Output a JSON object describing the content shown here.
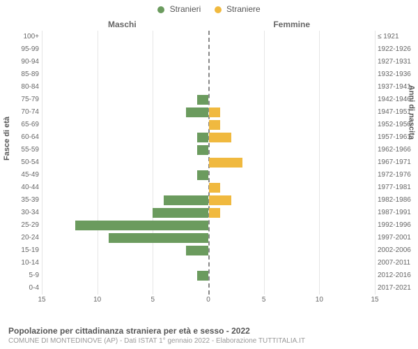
{
  "legend": {
    "male": "Stranieri",
    "female": "Straniere",
    "male_color": "#6b9b5e",
    "female_color": "#f0b93f"
  },
  "headers": {
    "male": "Maschi",
    "female": "Femmine"
  },
  "axis_titles": {
    "left": "Fasce di età",
    "right": "Anni di nascita"
  },
  "chart": {
    "type": "population-pyramid",
    "xmax": 15,
    "xticks": [
      15,
      10,
      5,
      0,
      5,
      10,
      15
    ],
    "background_color": "#ffffff",
    "grid_color": "#e5e5e5",
    "center_line_color": "#888888",
    "bar_male_color": "#6b9b5e",
    "bar_female_color": "#f0b93f",
    "rows": [
      {
        "age": "100+",
        "birth": "≤ 1921",
        "m": 0,
        "f": 0
      },
      {
        "age": "95-99",
        "birth": "1922-1926",
        "m": 0,
        "f": 0
      },
      {
        "age": "90-94",
        "birth": "1927-1931",
        "m": 0,
        "f": 0
      },
      {
        "age": "85-89",
        "birth": "1932-1936",
        "m": 0,
        "f": 0
      },
      {
        "age": "80-84",
        "birth": "1937-1941",
        "m": 0,
        "f": 0
      },
      {
        "age": "75-79",
        "birth": "1942-1946",
        "m": 1,
        "f": 0
      },
      {
        "age": "70-74",
        "birth": "1947-1951",
        "m": 2,
        "f": 1
      },
      {
        "age": "65-69",
        "birth": "1952-1956",
        "m": 0,
        "f": 1
      },
      {
        "age": "60-64",
        "birth": "1957-1961",
        "m": 1,
        "f": 2
      },
      {
        "age": "55-59",
        "birth": "1962-1966",
        "m": 1,
        "f": 0
      },
      {
        "age": "50-54",
        "birth": "1967-1971",
        "m": 0,
        "f": 3
      },
      {
        "age": "45-49",
        "birth": "1972-1976",
        "m": 1,
        "f": 0
      },
      {
        "age": "40-44",
        "birth": "1977-1981",
        "m": 0,
        "f": 1
      },
      {
        "age": "35-39",
        "birth": "1982-1986",
        "m": 4,
        "f": 2
      },
      {
        "age": "30-34",
        "birth": "1987-1991",
        "m": 5,
        "f": 1
      },
      {
        "age": "25-29",
        "birth": "1992-1996",
        "m": 12,
        "f": 0
      },
      {
        "age": "20-24",
        "birth": "1997-2001",
        "m": 9,
        "f": 0
      },
      {
        "age": "15-19",
        "birth": "2002-2006",
        "m": 2,
        "f": 0
      },
      {
        "age": "10-14",
        "birth": "2007-2011",
        "m": 0,
        "f": 0
      },
      {
        "age": "5-9",
        "birth": "2012-2016",
        "m": 1,
        "f": 0
      },
      {
        "age": "0-4",
        "birth": "2017-2021",
        "m": 0,
        "f": 0
      }
    ]
  },
  "footer": {
    "title": "Popolazione per cittadinanza straniera per età e sesso - 2022",
    "subtitle": "COMUNE DI MONTEDINOVE (AP) - Dati ISTAT 1° gennaio 2022 - Elaborazione TUTTITALIA.IT"
  }
}
